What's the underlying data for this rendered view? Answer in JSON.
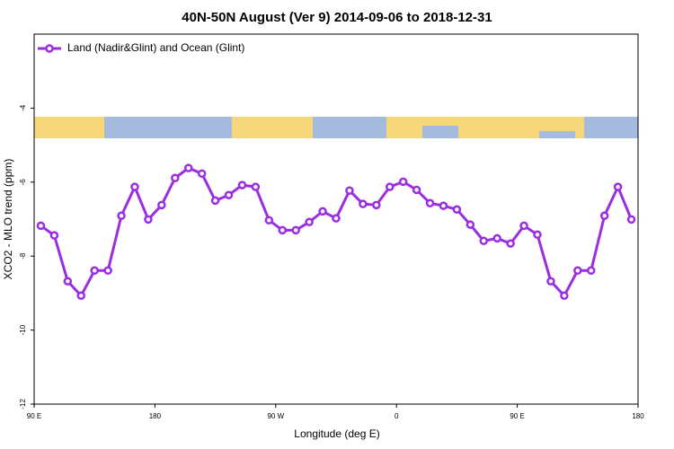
{
  "chart_data": {
    "type": "line",
    "title": "40N-50N August (Ver 9)   2014-09-06 to 2018-12-31",
    "x_label": "Longitude (deg E)",
    "y_label": "XCO2 - MLO trend (ppm)",
    "xlim": [
      90,
      540
    ],
    "ylim": [
      -12,
      -2
    ],
    "xticks": [
      {
        "value": 90,
        "label": "90 E"
      },
      {
        "value": 180,
        "label": "180"
      },
      {
        "value": 270,
        "label": "90 W"
      },
      {
        "value": 360,
        "label": "0"
      },
      {
        "value": 450,
        "label": "90 E"
      },
      {
        "value": 540,
        "label": "180"
      }
    ],
    "yticks": [
      -4,
      -6,
      -8,
      -10,
      -12
    ],
    "legend": "upper left",
    "x": [
      95,
      105,
      115,
      125,
      135,
      145,
      155,
      165,
      175,
      185,
      195,
      205,
      215,
      225,
      235,
      245,
      255,
      265,
      275,
      285,
      295,
      305,
      315,
      325,
      335,
      345,
      355,
      365,
      375,
      385,
      395,
      405,
      415,
      425,
      435,
      445,
      455,
      465,
      475,
      485,
      495,
      505,
      515,
      525,
      535
    ],
    "series": [
      {
        "name": "Land (Nadir&Glint) and Ocean (Glint)",
        "color": "#9b2ee0",
        "values": [
          -7.18,
          -7.44,
          -8.68,
          -9.07,
          -8.39,
          -8.39,
          -6.91,
          -6.13,
          -7.01,
          -6.62,
          -5.89,
          -5.62,
          -5.77,
          -6.5,
          -6.35,
          -6.08,
          -6.13,
          -7.03,
          -7.3,
          -7.3,
          -7.08,
          -6.79,
          -6.98,
          -6.23,
          -6.59,
          -6.62,
          -6.13,
          -5.99,
          -6.21,
          -6.57,
          -6.64,
          -6.74,
          -7.15,
          -7.59,
          -7.52,
          -7.66,
          -7.18,
          -7.42,
          -8.68,
          -9.07,
          -8.39,
          -8.39,
          -6.91,
          -6.13,
          -7.01
        ]
      }
    ]
  }
}
